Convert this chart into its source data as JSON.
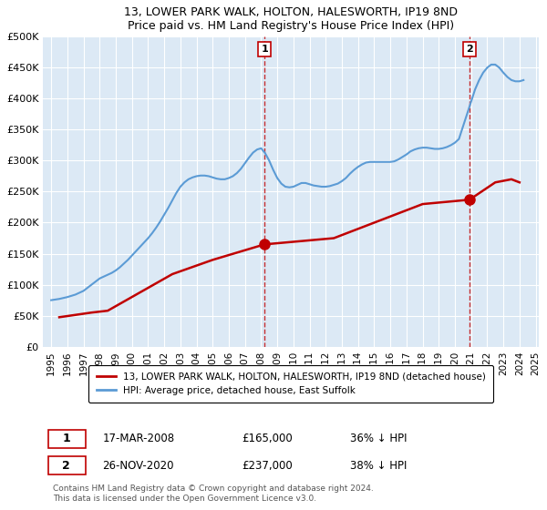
{
  "title": "13, LOWER PARK WALK, HOLTON, HALESWORTH, IP19 8ND",
  "subtitle": "Price paid vs. HM Land Registry's House Price Index (HPI)",
  "xlabel": "",
  "ylabel": "",
  "ylim": [
    0,
    500000
  ],
  "yticks": [
    0,
    50000,
    100000,
    150000,
    200000,
    250000,
    300000,
    350000,
    400000,
    450000,
    500000
  ],
  "ytick_labels": [
    "£0",
    "£50K",
    "£100K",
    "£150K",
    "£200K",
    "£250K",
    "£300K",
    "£350K",
    "£400K",
    "£450K",
    "£500K"
  ],
  "background_color": "#dce9f5",
  "plot_background": "#dce9f5",
  "hpi_color": "#5b9bd5",
  "price_color": "#c00000",
  "marker1_date": 2008.21,
  "marker1_price": 165000,
  "marker2_date": 2020.9,
  "marker2_price": 237000,
  "legend_line1": "13, LOWER PARK WALK, HOLTON, HALESWORTH, IP19 8ND (detached house)",
  "legend_line2": "HPI: Average price, detached house, East Suffolk",
  "annotation1_label": "1",
  "annotation2_label": "2",
  "table_row1": [
    "1",
    "17-MAR-2008",
    "£165,000",
    "36% ↓ HPI"
  ],
  "table_row2": [
    "2",
    "26-NOV-2020",
    "£237,000",
    "38% ↓ HPI"
  ],
  "footer": "Contains HM Land Registry data © Crown copyright and database right 2024.\nThis data is licensed under the Open Government Licence v3.0.",
  "hpi_years": [
    1995,
    1995.25,
    1995.5,
    1995.75,
    1996,
    1996.25,
    1996.5,
    1996.75,
    1997,
    1997.25,
    1997.5,
    1997.75,
    1998,
    1998.25,
    1998.5,
    1998.75,
    1999,
    1999.25,
    1999.5,
    1999.75,
    2000,
    2000.25,
    2000.5,
    2000.75,
    2001,
    2001.25,
    2001.5,
    2001.75,
    2002,
    2002.25,
    2002.5,
    2002.75,
    2003,
    2003.25,
    2003.5,
    2003.75,
    2004,
    2004.25,
    2004.5,
    2004.75,
    2005,
    2005.25,
    2005.5,
    2005.75,
    2006,
    2006.25,
    2006.5,
    2006.75,
    2007,
    2007.25,
    2007.5,
    2007.75,
    2008,
    2008.25,
    2008.5,
    2008.75,
    2009,
    2009.25,
    2009.5,
    2009.75,
    2010,
    2010.25,
    2010.5,
    2010.75,
    2011,
    2011.25,
    2011.5,
    2011.75,
    2012,
    2012.25,
    2012.5,
    2012.75,
    2013,
    2013.25,
    2013.5,
    2013.75,
    2014,
    2014.25,
    2014.5,
    2014.75,
    2015,
    2015.25,
    2015.5,
    2015.75,
    2016,
    2016.25,
    2016.5,
    2016.75,
    2017,
    2017.25,
    2017.5,
    2017.75,
    2018,
    2018.25,
    2018.5,
    2018.75,
    2019,
    2019.25,
    2019.5,
    2019.75,
    2020,
    2020.25,
    2020.5,
    2020.75,
    2021,
    2021.25,
    2021.5,
    2021.75,
    2022,
    2022.25,
    2022.5,
    2022.75,
    2023,
    2023.25,
    2023.5,
    2023.75,
    2024,
    2024.25
  ],
  "hpi_values": [
    75000,
    76000,
    77000,
    78500,
    80000,
    82000,
    84000,
    87000,
    90000,
    95000,
    100000,
    105000,
    110000,
    113000,
    116000,
    119000,
    123000,
    128000,
    134000,
    140000,
    147000,
    154000,
    161000,
    168000,
    175000,
    183000,
    192000,
    202000,
    213000,
    224000,
    236000,
    248000,
    258000,
    265000,
    270000,
    273000,
    275000,
    276000,
    276000,
    275000,
    273000,
    271000,
    270000,
    270000,
    272000,
    275000,
    280000,
    287000,
    296000,
    305000,
    313000,
    318000,
    320000,
    312000,
    300000,
    285000,
    272000,
    263000,
    258000,
    257000,
    258000,
    261000,
    264000,
    264000,
    262000,
    260000,
    259000,
    258000,
    258000,
    259000,
    261000,
    263000,
    267000,
    272000,
    279000,
    285000,
    290000,
    294000,
    297000,
    298000,
    298000,
    298000,
    298000,
    298000,
    298000,
    299000,
    302000,
    306000,
    310000,
    315000,
    318000,
    320000,
    321000,
    321000,
    320000,
    319000,
    319000,
    320000,
    322000,
    325000,
    329000,
    335000,
    355000,
    375000,
    395000,
    415000,
    430000,
    442000,
    450000,
    455000,
    455000,
    450000,
    442000,
    435000,
    430000,
    428000,
    428000,
    430000
  ],
  "price_years": [
    1995.5,
    1997.5,
    1998.5,
    2002.5,
    2005.0,
    2008.21,
    2012.5,
    2014.5,
    2016.5,
    2017.5,
    2018.0,
    2020.9,
    2022.5,
    2023.5,
    2024.0
  ],
  "price_values": [
    47500,
    55000,
    58000,
    117000,
    140000,
    165000,
    175000,
    195000,
    215000,
    225000,
    230000,
    237000,
    265000,
    270000,
    265000
  ]
}
